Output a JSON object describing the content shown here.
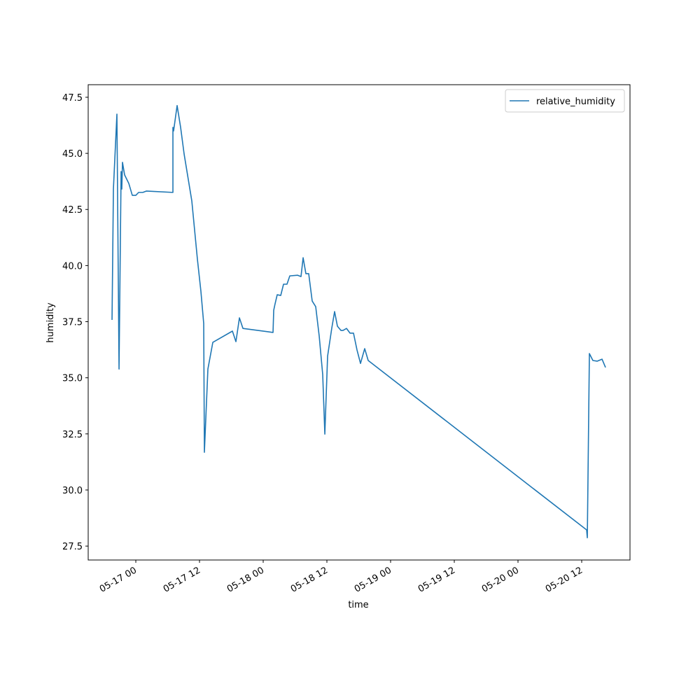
{
  "chart_data": {
    "type": "line",
    "xlabel": "time",
    "ylabel": "humidity",
    "x": [
      -4.48,
      -4.22,
      -3.56,
      -3.16,
      -2.77,
      -2.64,
      -2.51,
      -2.11,
      -1.32,
      -0.66,
      0,
      0.53,
      1.32,
      1.98,
      6.99,
      6.99,
      7.12,
      7.78,
      8.44,
      9.1,
      10.55,
      11.6,
      12.26,
      12.79,
      12.92,
      13.58,
      14.51,
      18.2,
      18.86,
      19.52,
      20.18,
      25.85,
      25.98,
      26.24,
      26.64,
      27.3,
      27.83,
      28.48,
      29.01,
      30.46,
      31.12,
      31.52,
      32.04,
      32.57,
      33.23,
      33.89,
      34.55,
      35.21,
      35.61,
      36.13,
      36.93,
      37.45,
      37.98,
      38.64,
      39.03,
      39.69,
      40.35,
      41.01,
      41.67,
      42.33,
      43.12,
      43.78,
      84.93,
      85.06,
      85.45,
      86.11,
      86.91,
      87.83,
      88.49
    ],
    "series": [
      {
        "name": "relative_humidity",
        "color": "#1f77b4",
        "values": [
          37.58,
          43.41,
          46.75,
          35.39,
          44.19,
          43.41,
          44.6,
          44.04,
          43.66,
          43.13,
          43.13,
          43.26,
          43.26,
          43.32,
          43.26,
          46.16,
          46.0,
          47.13,
          46.16,
          44.97,
          42.88,
          40.29,
          38.86,
          37.42,
          31.68,
          35.39,
          36.58,
          37.08,
          36.61,
          37.67,
          37.2,
          37.02,
          38.01,
          38.3,
          38.7,
          38.67,
          39.17,
          39.17,
          39.54,
          39.57,
          39.51,
          40.35,
          39.64,
          39.64,
          38.42,
          38.17,
          36.86,
          35.14,
          32.49,
          35.96,
          37.23,
          37.95,
          37.3,
          37.11,
          37.11,
          37.2,
          36.99,
          36.99,
          36.24,
          35.64,
          36.3,
          35.77,
          28.22,
          27.87,
          36.08,
          35.77,
          35.74,
          35.83,
          35.46
        ]
      }
    ],
    "xlim": [
      -8.97,
      93.1
    ],
    "xticks": [
      {
        "value": 0,
        "label": "05-17 00"
      },
      {
        "value": 12,
        "label": "05-17 12"
      },
      {
        "value": 24,
        "label": "05-18 00"
      },
      {
        "value": 36,
        "label": "05-18 12"
      },
      {
        "value": 48,
        "label": "05-19 00"
      },
      {
        "value": 60,
        "label": "05-19 12"
      },
      {
        "value": 72,
        "label": "05-20 00"
      },
      {
        "value": 84,
        "label": "05-20 12"
      }
    ],
    "ylim": [
      26.88,
      48.06
    ],
    "yticks": [
      {
        "value": 27.5,
        "label": "27.5"
      },
      {
        "value": 30,
        "label": "30.0"
      },
      {
        "value": 32.5,
        "label": "32.5"
      },
      {
        "value": 35,
        "label": "35.0"
      },
      {
        "value": 37.5,
        "label": "37.5"
      },
      {
        "value": 40,
        "label": "40.0"
      },
      {
        "value": 42.5,
        "label": "42.5"
      },
      {
        "value": 45,
        "label": "45.0"
      },
      {
        "value": 47.5,
        "label": "47.5"
      }
    ],
    "legend": "upper right",
    "grid": false
  }
}
